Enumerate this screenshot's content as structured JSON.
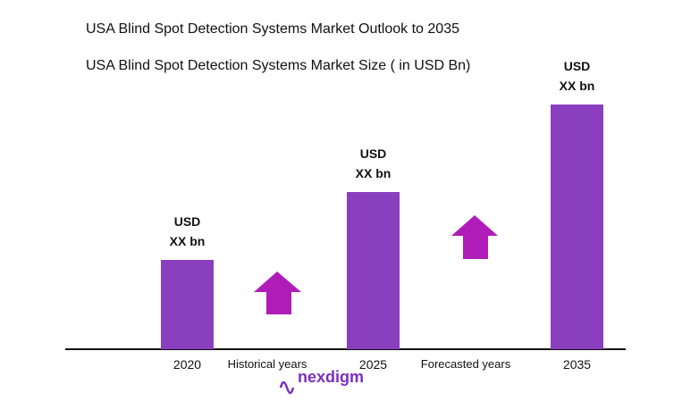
{
  "chart_data": {
    "type": "bar",
    "title": "USA Blind Spot Detection Systems Market Outlook to 2035",
    "subtitle": "USA Blind Spot Detection Systems Market Size ( in USD Bn)",
    "categories": [
      "2020",
      "2025",
      "2035"
    ],
    "values": [
      100,
      176,
      274
    ],
    "value_labels": [
      "USD XX bn",
      "USD XX bn",
      "USD XX bn"
    ],
    "color": "#8a3fbf",
    "annotations": [
      "Historical years",
      "Forecasted years"
    ],
    "logo": "nexdigm"
  }
}
